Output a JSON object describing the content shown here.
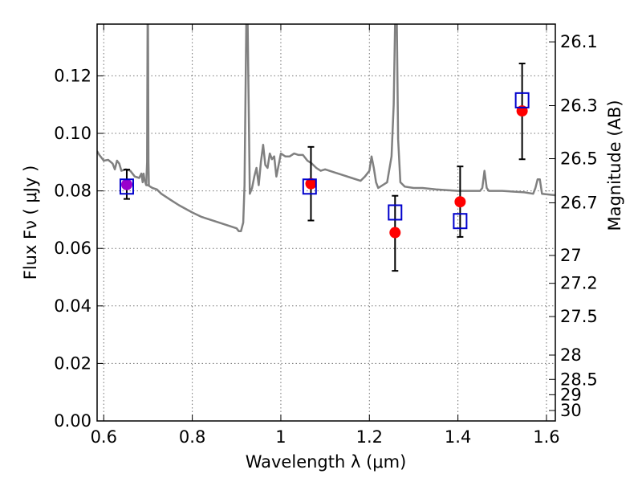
{
  "chart_data": {
    "type": "scatter",
    "title": "",
    "xlabel": "Wavelength  λ (μm)",
    "ylabel": "Flux  Fν  ( μJy )",
    "ylabel_right": "Magnitude (AB)",
    "xlim": [
      0.585,
      1.62
    ],
    "ylim": [
      0.0,
      0.138
    ],
    "grid": true,
    "xticks": [
      0.6,
      0.8,
      1.0,
      1.2,
      1.4,
      1.6
    ],
    "xtick_labels": [
      "0.6",
      "0.8",
      "1",
      "1.2",
      "1.4",
      "1.6"
    ],
    "yticks": [
      0.0,
      0.02,
      0.04,
      0.06,
      0.08,
      0.1,
      0.12
    ],
    "ytick_labels": [
      "0.00",
      "0.02",
      "0.04",
      "0.06",
      "0.08",
      "0.10",
      "0.12"
    ],
    "right_axis": {
      "scale": "AB magnitude (m = 23.9 - 2.5·log10(F/μJy))",
      "ticks": [
        26.1,
        26.3,
        26.5,
        26.7,
        27,
        27.2,
        27.5,
        28,
        28.5,
        29,
        30
      ],
      "tick_labels": [
        "26.1",
        "26.3",
        "26.5",
        "26.7",
        "27",
        "27.2",
        "27.5",
        "28",
        "28.5",
        "29",
        "30"
      ]
    },
    "series": [
      {
        "type": "line",
        "color": "#808080",
        "x": [
          0.585,
          0.59,
          0.6,
          0.61,
          0.62,
          0.625,
          0.63,
          0.635,
          0.64,
          0.65,
          0.66,
          0.67,
          0.68,
          0.685,
          0.688,
          0.69,
          0.692,
          0.694,
          0.696,
          0.7,
          0.705,
          0.71,
          0.72,
          0.73,
          0.75,
          0.77,
          0.8,
          0.82,
          0.85,
          0.88,
          0.9,
          0.905,
          0.91,
          0.915,
          0.918,
          0.922,
          0.925,
          0.93,
          0.935,
          0.94,
          0.945,
          0.95,
          0.955,
          0.96,
          0.965,
          0.97,
          0.975,
          0.98,
          0.985,
          0.99,
          1.0,
          1.01,
          1.02,
          1.03,
          1.04,
          1.05,
          1.06,
          1.07,
          1.08,
          1.09,
          1.1,
          1.12,
          1.14,
          1.16,
          1.18,
          1.19,
          1.2,
          1.205,
          1.21,
          1.215,
          1.22,
          1.23,
          1.24,
          1.25,
          1.255,
          1.258,
          1.262,
          1.265,
          1.27,
          1.28,
          1.3,
          1.32,
          1.35,
          1.4,
          1.45,
          1.455,
          1.46,
          1.465,
          1.47,
          1.5,
          1.55,
          1.57,
          1.575,
          1.58,
          1.585,
          1.59,
          1.62
        ],
        "y": [
          0.0938,
          0.0925,
          0.0905,
          0.0908,
          0.0895,
          0.0875,
          0.0905,
          0.0895,
          0.087,
          0.0875,
          0.087,
          0.085,
          0.0845,
          0.086,
          0.083,
          0.086,
          0.084,
          0.083,
          0.082,
          0.082,
          0.0815,
          0.081,
          0.0805,
          0.079,
          0.077,
          0.075,
          0.0725,
          0.071,
          0.0695,
          0.068,
          0.067,
          0.066,
          0.066,
          0.069,
          0.082,
          0.138,
          0.138,
          0.079,
          0.081,
          0.085,
          0.088,
          0.082,
          0.09,
          0.096,
          0.089,
          0.088,
          0.093,
          0.091,
          0.092,
          0.085,
          0.093,
          0.092,
          0.092,
          0.093,
          0.0925,
          0.0925,
          0.0905,
          0.0895,
          0.088,
          0.087,
          0.0875,
          0.0865,
          0.0855,
          0.0845,
          0.0835,
          0.085,
          0.087,
          0.092,
          0.088,
          0.083,
          0.081,
          0.082,
          0.083,
          0.092,
          0.11,
          0.138,
          0.138,
          0.098,
          0.083,
          0.0815,
          0.081,
          0.081,
          0.0805,
          0.08,
          0.08,
          0.081,
          0.087,
          0.081,
          0.08,
          0.08,
          0.0795,
          0.079,
          0.081,
          0.084,
          0.084,
          0.079,
          0.0785
        ]
      },
      {
        "type": "line",
        "color": "#808080",
        "x": [
          0.696,
          0.698,
          0.699,
          0.7,
          0.701,
          0.702
        ],
        "y": [
          0.082,
          0.09,
          0.138,
          0.138,
          0.09,
          0.082
        ]
      },
      {
        "type": "errorbar",
        "color": "#000000",
        "x": [
          0.652,
          1.068,
          1.258,
          1.405,
          1.545
        ],
        "y": [
          0.0822,
          0.0825,
          0.0655,
          0.0762,
          0.1078
        ],
        "yerr_low": [
          0.005,
          0.0128,
          0.0133,
          0.0122,
          0.0168
        ],
        "yerr_high": [
          0.0052,
          0.0128,
          0.0128,
          0.0123,
          0.0165
        ]
      },
      {
        "type": "scatter",
        "marker": "circle",
        "color": "#ff0000",
        "x": [
          1.068,
          1.258,
          1.405,
          1.545
        ],
        "y": [
          0.0825,
          0.0655,
          0.0762,
          0.1078
        ]
      },
      {
        "type": "scatter",
        "marker": "circle",
        "color": "#9900cc",
        "x": [
          0.652
        ],
        "y": [
          0.0822
        ]
      },
      {
        "type": "scatter",
        "marker": "open-square",
        "color": "#0000cc",
        "x": [
          0.652,
          1.065,
          1.258,
          1.405,
          1.545
        ],
        "y": [
          0.0815,
          0.0815,
          0.0725,
          0.0695,
          0.1115
        ]
      }
    ]
  }
}
